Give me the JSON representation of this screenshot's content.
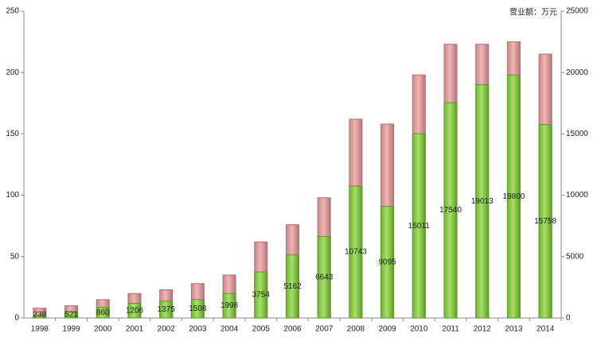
{
  "chart_data": {
    "type": "bar",
    "annotation": "营业额：万元",
    "categories": [
      "1998",
      "1999",
      "2000",
      "2001",
      "2002",
      "2003",
      "2004",
      "2005",
      "2006",
      "2007",
      "2008",
      "2009",
      "2010",
      "2011",
      "2012",
      "2013",
      "2014"
    ],
    "series": [
      {
        "color": "#e3a0a0",
        "values": [
          8,
          10,
          15,
          20,
          23,
          28,
          35,
          62,
          76,
          98,
          162,
          158,
          198,
          223,
          223,
          225,
          215
        ]
      },
      {
        "color": "#8fd14f",
        "axis": "y2",
        "values": [
          238,
          521,
          860,
          1206,
          1375,
          1508,
          1998,
          3754,
          5162,
          6643,
          10743,
          9095,
          15011,
          17540,
          19013,
          19800,
          15758
        ]
      }
    ],
    "ylim": [
      0,
      250
    ],
    "yticks": [
      0,
      50,
      100,
      150,
      200,
      250
    ],
    "y2lim": [
      0,
      25000
    ],
    "y2ticks": [
      0,
      5000,
      10000,
      15000,
      20000,
      25000
    ],
    "grid": false
  }
}
